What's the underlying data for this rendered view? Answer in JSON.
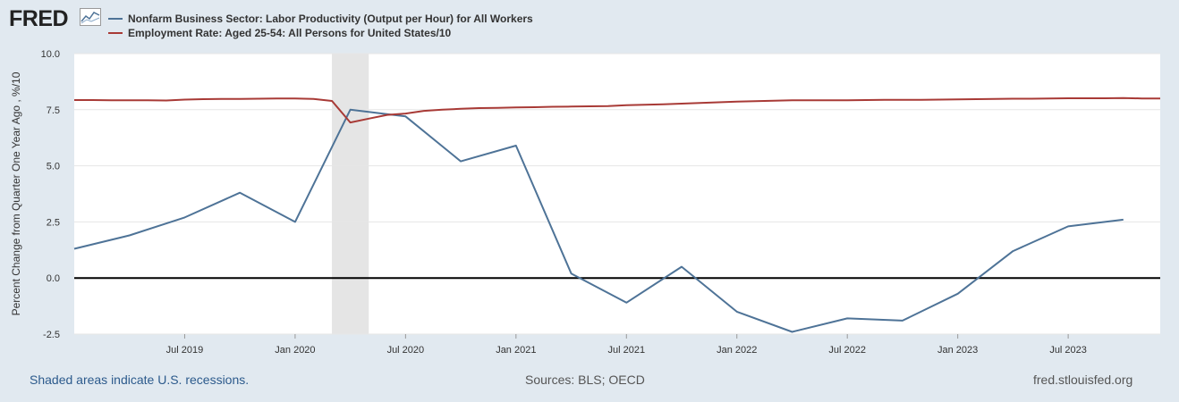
{
  "logo_text": "FRED",
  "legend": [
    {
      "label": "Nonfarm Business Sector: Labor Productivity (Output per Hour) for All Workers",
      "color": "#4e7397"
    },
    {
      "label": "Employment Rate: Aged 25-54: All Persons for United States/10",
      "color": "#a83a36"
    }
  ],
  "footer": {
    "recessions": "Shaded areas indicate U.S. recessions.",
    "sources": "Sources: BLS; OECD",
    "site": "fred.stlouisfed.org"
  },
  "chart_data": {
    "type": "line",
    "ylabel": "Percent Change from Quarter One Year Ago , %/10",
    "ylim": [
      -2.5,
      10.0
    ],
    "yticks": [
      "10.0",
      "7.5",
      "5.0",
      "2.5",
      "0.0",
      "-2.5"
    ],
    "ytick_values": [
      10.0,
      7.5,
      5.0,
      2.5,
      0.0,
      -2.5
    ],
    "xlim": [
      "2019-01",
      "2023-12"
    ],
    "xticks": [
      {
        "label": "Jul 2019",
        "date": "2019-07"
      },
      {
        "label": "Jan 2020",
        "date": "2020-01"
      },
      {
        "label": "Jul 2020",
        "date": "2020-07"
      },
      {
        "label": "Jan 2021",
        "date": "2021-01"
      },
      {
        "label": "Jul 2021",
        "date": "2021-07"
      },
      {
        "label": "Jan 2022",
        "date": "2022-01"
      },
      {
        "label": "Jul 2022",
        "date": "2022-07"
      },
      {
        "label": "Jan 2023",
        "date": "2023-01"
      },
      {
        "label": "Jul 2023",
        "date": "2023-07"
      }
    ],
    "recession": {
      "start": "2020-03",
      "end": "2020-05"
    },
    "series": [
      {
        "name": "Nonfarm Business Sector: Labor Productivity (Output per Hour) for All Workers",
        "color": "#4e7397",
        "x": [
          "2019-01",
          "2019-04",
          "2019-07",
          "2019-10",
          "2020-01",
          "2020-04",
          "2020-07",
          "2020-10",
          "2021-01",
          "2021-04",
          "2021-07",
          "2021-10",
          "2022-01",
          "2022-04",
          "2022-07",
          "2022-10",
          "2023-01",
          "2023-04",
          "2023-07",
          "2023-10"
        ],
        "values": [
          1.3,
          1.9,
          2.7,
          3.8,
          2.5,
          7.5,
          7.2,
          5.2,
          5.9,
          0.2,
          -1.1,
          0.5,
          -1.5,
          -2.4,
          -1.8,
          -1.9,
          -0.7,
          1.2,
          2.3,
          2.6
        ]
      },
      {
        "name": "Employment Rate: Aged 25-54: All Persons for United States/10",
        "color": "#a83a36",
        "x": [
          "2019-01",
          "2019-02",
          "2019-03",
          "2019-04",
          "2019-05",
          "2019-06",
          "2019-07",
          "2019-08",
          "2019-09",
          "2019-10",
          "2019-11",
          "2019-12",
          "2020-01",
          "2020-02",
          "2020-03",
          "2020-04",
          "2020-05",
          "2020-06",
          "2020-07",
          "2020-08",
          "2020-09",
          "2020-10",
          "2020-11",
          "2020-12",
          "2021-01",
          "2021-02",
          "2021-03",
          "2021-04",
          "2021-05",
          "2021-06",
          "2021-07",
          "2021-08",
          "2021-09",
          "2021-10",
          "2021-11",
          "2021-12",
          "2022-01",
          "2022-02",
          "2022-03",
          "2022-04",
          "2022-05",
          "2022-06",
          "2022-07",
          "2022-08",
          "2022-09",
          "2022-10",
          "2022-11",
          "2022-12",
          "2023-01",
          "2023-02",
          "2023-03",
          "2023-04",
          "2023-05",
          "2023-06",
          "2023-07",
          "2023-08",
          "2023-09",
          "2023-10",
          "2023-11",
          "2023-12"
        ],
        "values": [
          7.93,
          7.93,
          7.92,
          7.92,
          7.92,
          7.91,
          7.95,
          7.97,
          7.98,
          7.98,
          7.99,
          8.0,
          8.0,
          7.98,
          7.89,
          6.93,
          7.1,
          7.27,
          7.33,
          7.45,
          7.5,
          7.54,
          7.57,
          7.58,
          7.6,
          7.61,
          7.63,
          7.64,
          7.65,
          7.66,
          7.7,
          7.72,
          7.74,
          7.77,
          7.8,
          7.83,
          7.86,
          7.88,
          7.9,
          7.92,
          7.92,
          7.92,
          7.92,
          7.93,
          7.94,
          7.94,
          7.94,
          7.95,
          7.96,
          7.97,
          7.98,
          7.99,
          7.99,
          8.0,
          8.01,
          8.01,
          8.01,
          8.02,
          8.0,
          8.0
        ]
      }
    ]
  }
}
